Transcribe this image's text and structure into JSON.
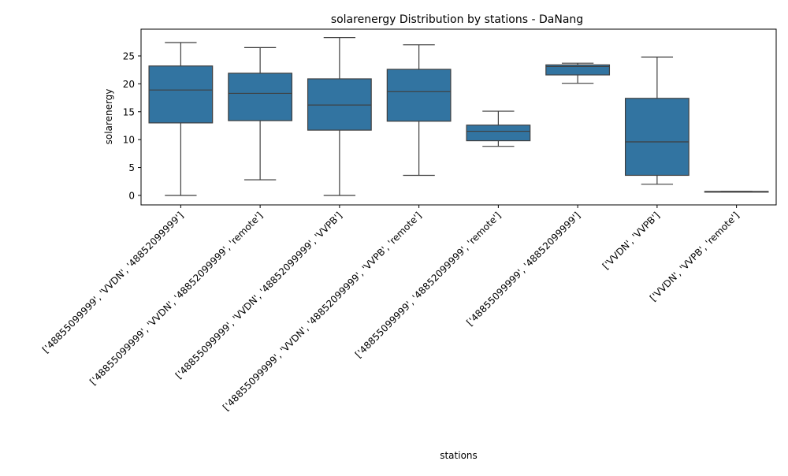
{
  "chart_data": {
    "type": "box",
    "title": "solarenergy Distribution by stations - DaNang",
    "xlabel": "stations",
    "ylabel": "solarenergy",
    "ylim": [
      -1.7,
      29.8
    ],
    "yticks": [
      0,
      5,
      10,
      15,
      20,
      25
    ],
    "grid": false,
    "legend": "none",
    "box_color": "#3274a1",
    "line_color": "#3f3f3f",
    "categories": [
      "['48855099999', 'VVDN', '48852099999']",
      "['48855099999', 'VVDN', '48852099999', 'remote']",
      "['48855099999', 'VVDN', '48852099999', 'VVPB']",
      "['48855099999', 'VVDN', '48852099999', 'VVPB', 'remote']",
      "['48855099999', '48852099999', 'remote']",
      "['48855099999', '48852099999']",
      "['VVDN', 'VVPB']",
      "['VVDN', 'VVPB', 'remote']"
    ],
    "boxes": [
      {
        "whisker_low": 0.0,
        "q1": 13.0,
        "median": 18.9,
        "q3": 23.2,
        "whisker_high": 27.4
      },
      {
        "whisker_low": 2.8,
        "q1": 13.4,
        "median": 18.3,
        "q3": 21.9,
        "whisker_high": 26.5
      },
      {
        "whisker_low": 0.0,
        "q1": 11.7,
        "median": 16.2,
        "q3": 20.9,
        "whisker_high": 28.3
      },
      {
        "whisker_low": 3.6,
        "q1": 13.3,
        "median": 18.6,
        "q3": 22.6,
        "whisker_high": 27.0
      },
      {
        "whisker_low": 8.8,
        "q1": 9.8,
        "median": 11.5,
        "q3": 12.6,
        "whisker_high": 15.1
      },
      {
        "whisker_low": 20.1,
        "q1": 21.6,
        "median": 23.1,
        "q3": 23.4,
        "whisker_high": 23.7
      },
      {
        "whisker_low": 2.0,
        "q1": 3.6,
        "median": 9.6,
        "q3": 17.4,
        "whisker_high": 24.8
      },
      {
        "whisker_low": 0.7,
        "q1": 0.7,
        "median": 0.7,
        "q3": 0.7,
        "whisker_high": 0.7
      }
    ]
  }
}
